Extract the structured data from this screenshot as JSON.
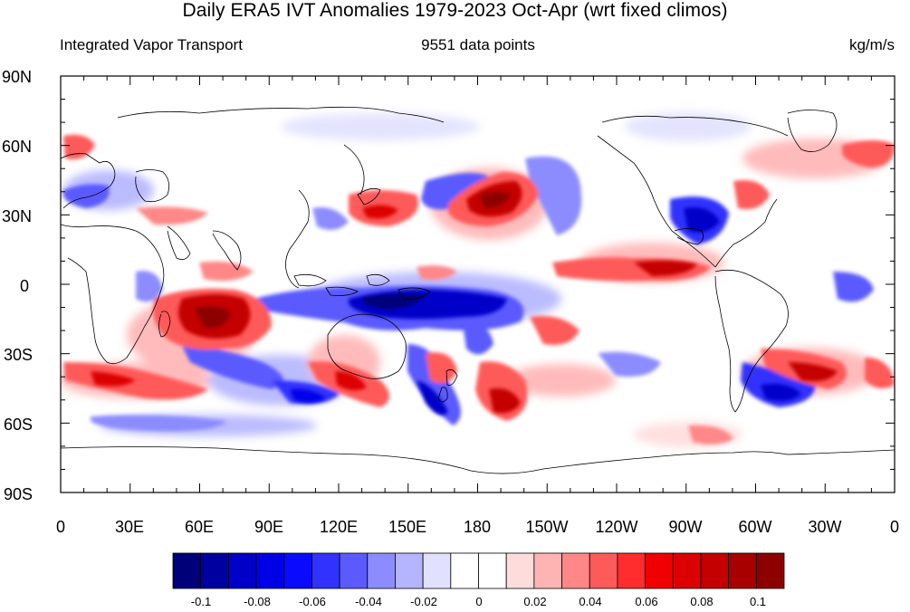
{
  "title": "Daily ERA5 IVT Anomalies 1979-2023 Oct-Apr (wrt fixed climos)",
  "subtitle": {
    "left": "Integrated Vapor Transport",
    "center": "9551 data points",
    "right": "kg/m/s"
  },
  "map": {
    "type": "filled-contour map (global, cylindrical equidistant)",
    "projection": "lon 0 to 360, lat -90 to 90",
    "lat_ticks": [
      "90N",
      "60N",
      "30N",
      "0",
      "30S",
      "60S",
      "90S"
    ],
    "lon_ticks": [
      "0",
      "30E",
      "60E",
      "90E",
      "120E",
      "150E",
      "180",
      "150W",
      "120W",
      "90W",
      "60W",
      "30W",
      "0"
    ],
    "blank_region_note": "no shading poleward of roughly 85N and 85S",
    "anomaly_regions": [
      {
        "name": "central equatorial Pacific / Maritime Continent",
        "sign": "negative",
        "approx_lon": [
          125,
          190
        ],
        "approx_lat": [
          -20,
          2
        ],
        "strength": "strong"
      },
      {
        "name": "North Pacific near dateline",
        "sign": "positive",
        "approx_lon": [
          160,
          200
        ],
        "approx_lat": [
          18,
          48
        ],
        "strength": "strong"
      },
      {
        "name": "northeast Pacific / southeast of Alaska",
        "sign": "negative",
        "approx_lon": [
          200,
          230
        ],
        "approx_lat": [
          20,
          55
        ],
        "strength": "moderate"
      },
      {
        "name": "western North Pacific",
        "sign": "positive",
        "approx_lon": [
          125,
          160
        ],
        "approx_lat": [
          25,
          40
        ],
        "strength": "moderate"
      },
      {
        "name": "eastern tropical Pacific",
        "sign": "positive",
        "approx_lon": [
          230,
          290
        ],
        "approx_lat": [
          0,
          15
        ],
        "strength": "strong"
      },
      {
        "name": "Gulf of Mexico / southeast US",
        "sign": "negative",
        "approx_lon": [
          250,
          285
        ],
        "approx_lat": [
          15,
          40
        ],
        "strength": "strong"
      },
      {
        "name": "western North Atlantic",
        "sign": "positive",
        "approx_lon": [
          280,
          310
        ],
        "approx_lat": [
          20,
          45
        ],
        "strength": "moderate"
      },
      {
        "name": "South Indian Ocean / Madagascar",
        "sign": "positive",
        "approx_lon": [
          35,
          90
        ],
        "approx_lat": [
          -35,
          -5
        ],
        "strength": "strong"
      },
      {
        "name": "southern Indian Ocean",
        "sign": "negative",
        "approx_lon": [
          40,
          130
        ],
        "approx_lat": [
          -55,
          -30
        ],
        "strength": "moderate"
      },
      {
        "name": "south of Australia / Tasman Sea",
        "sign": "positive",
        "approx_lon": [
          100,
          170
        ],
        "approx_lat": [
          -50,
          -30
        ],
        "strength": "strong"
      },
      {
        "name": "Southern Ocean south of New Zealand",
        "sign": "negative",
        "approx_lon": [
          135,
          200
        ],
        "approx_lat": [
          -62,
          -25
        ],
        "strength": "strong"
      },
      {
        "name": "South Pacific east of dateline",
        "sign": "positive",
        "approx_lon": [
          180,
          210
        ],
        "approx_lat": [
          -55,
          -25
        ],
        "strength": "strong"
      },
      {
        "name": "South Atlantic",
        "sign": "positive",
        "approx_lon": [
          300,
          350
        ],
        "approx_lat": [
          -45,
          -25
        ],
        "strength": "strong"
      },
      {
        "name": "southwest Atlantic",
        "sign": "negative",
        "approx_lon": [
          305,
          335
        ],
        "approx_lat": [
          -55,
          -35
        ],
        "strength": "strong"
      },
      {
        "name": "North Atlantic / western Europe",
        "sign": "positive",
        "approx_lon": [
          330,
          360
        ],
        "approx_lat": [
          45,
          65
        ],
        "strength": "moderate"
      },
      {
        "name": "Mediterranean",
        "sign": "negative",
        "approx_lon": [
          0,
          35
        ],
        "approx_lat": [
          25,
          45
        ],
        "strength": "moderate"
      }
    ]
  },
  "colorbar": {
    "labels": [
      "-0.1",
      "-0.08",
      "-0.06",
      "-0.04",
      "-0.02",
      "0",
      "0.02",
      "0.04",
      "0.06",
      "0.08",
      "0.1"
    ],
    "levels": [
      -0.11,
      -0.1,
      -0.09,
      -0.08,
      -0.07,
      -0.06,
      -0.05,
      -0.04,
      -0.03,
      -0.02,
      -0.01,
      0,
      0.01,
      0.02,
      0.03,
      0.04,
      0.05,
      0.06,
      0.07,
      0.08,
      0.09,
      0.1,
      0.11
    ],
    "colors": [
      "#00007a",
      "#0000a0",
      "#0000c8",
      "#0000e6",
      "#0a0aff",
      "#3232ff",
      "#5a5aff",
      "#8c8cff",
      "#b4b4ff",
      "#e1e1ff",
      "#ffffff",
      "#ffffff",
      "#ffdcdc",
      "#ffb4b4",
      "#ff8787",
      "#ff5a5a",
      "#ff2d2d",
      "#f00000",
      "#dc0000",
      "#c40000",
      "#a80000",
      "#8c0000"
    ]
  }
}
